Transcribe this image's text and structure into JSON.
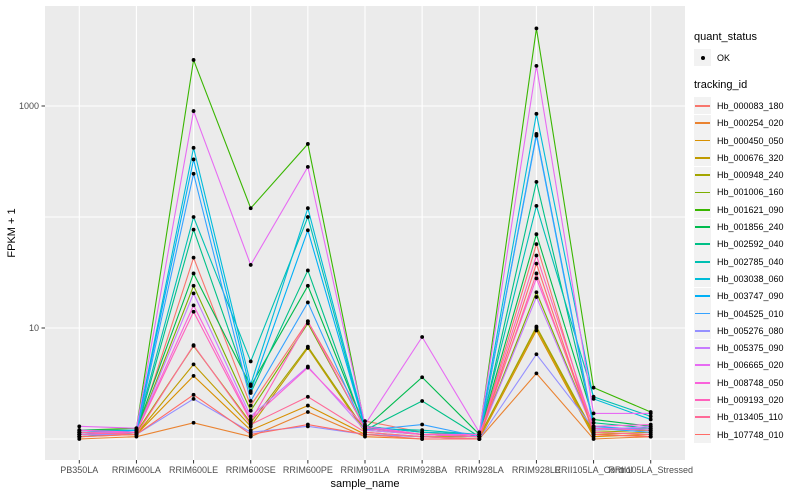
{
  "figure": {
    "background": "#FFFFFF",
    "panel": {
      "bg": "#EBEBEB",
      "grid_color": "#FFFFFF",
      "tick_color": "#333333",
      "tick_label_color": "#4D4D4D",
      "axis_title_color": "#000000"
    },
    "y_axis": {
      "title": "FPKM + 1",
      "tick_labels": [
        "1000",
        "10"
      ],
      "tick_values": [
        1000,
        10
      ],
      "gridline_values": [
        1,
        10,
        100,
        1000
      ],
      "scale": "log10"
    },
    "x_axis": {
      "title": "sample_name"
    },
    "legend": {
      "quant_status_title": "quant_status",
      "quant_status_item": "OK",
      "tracking_id_title": "tracking_id",
      "key_bg": "#F2F2F2",
      "point_color": "#000000"
    }
  },
  "chart_data": {
    "type": "line",
    "title": "",
    "xlabel": "sample_name",
    "ylabel": "FPKM + 1",
    "y_scale": "log10",
    "ylim": [
      0.65,
      8500
    ],
    "yticks": [
      10,
      1000
    ],
    "grid": true,
    "legend_position": "right",
    "point_marker": {
      "legend_label": "OK",
      "color": "#000000",
      "radius": 1.9
    },
    "x": [
      "PB350LA",
      "RRIM600LA",
      "RRIM600LE",
      "RRIM600SE",
      "RRIM600PE",
      "RRIM901LA",
      "RRIM928BA",
      "RRIM928LA",
      "RRIM928LE",
      "RRII105LA_Control",
      "RRII105LA_Stressed"
    ],
    "series": [
      {
        "name": "Hb_000083_180",
        "color": "#F8766D",
        "values": [
          1.15,
          1.1,
          43,
          2.0,
          11.5,
          1.45,
          1.15,
          1.05,
          57,
          1.1,
          1.05
        ]
      },
      {
        "name": "Hb_000254_020",
        "color": "#EA8331",
        "values": [
          1.0,
          1.05,
          1.4,
          1.05,
          1.75,
          1.05,
          1.0,
          1.0,
          3.9,
          1.0,
          1.05
        ]
      },
      {
        "name": "Hb_000450_050",
        "color": "#D89000",
        "values": [
          1.05,
          1.1,
          3.7,
          1.2,
          2.0,
          1.1,
          1.05,
          1.0,
          9.5,
          1.05,
          1.1
        ]
      },
      {
        "name": "Hb_000676_320",
        "color": "#C09B00",
        "values": [
          1.1,
          1.1,
          4.7,
          1.3,
          6.6,
          1.15,
          1.05,
          1.05,
          10.0,
          1.1,
          1.15
        ]
      },
      {
        "name": "Hb_000948_240",
        "color": "#A3A500",
        "values": [
          1.05,
          1.15,
          6.9,
          1.4,
          6.8,
          1.2,
          1.1,
          1.05,
          10.3,
          1.15,
          1.2
        ]
      },
      {
        "name": "Hb_001006_160",
        "color": "#7CAE00",
        "values": [
          1.1,
          1.15,
          24,
          1.8,
          11,
          1.25,
          1.1,
          1.05,
          21,
          1.2,
          1.25
        ]
      },
      {
        "name": "Hb_001621_090",
        "color": "#39B600",
        "values": [
          1.2,
          1.25,
          2600,
          120,
          455,
          1.3,
          1.15,
          1.1,
          5000,
          2.9,
          1.75
        ]
      },
      {
        "name": "Hb_001856_240",
        "color": "#00BB4E",
        "values": [
          1.15,
          1.2,
          31,
          3.0,
          24,
          1.25,
          3.6,
          1.1,
          70,
          1.5,
          1.3
        ]
      },
      {
        "name": "Hb_002592_040",
        "color": "#00C087",
        "values": [
          1.1,
          1.15,
          77,
          2.6,
          33,
          1.2,
          2.2,
          1.05,
          207,
          1.4,
          1.25
        ]
      },
      {
        "name": "Hb_002785_040",
        "color": "#00C0B2",
        "values": [
          1.2,
          1.2,
          100,
          5.0,
          100,
          1.25,
          1.2,
          1.1,
          126,
          2.4,
          1.6
        ]
      },
      {
        "name": "Hb_003038_060",
        "color": "#00BCD8",
        "values": [
          1.15,
          1.2,
          420,
          3.1,
          120,
          1.3,
          1.15,
          1.1,
          850,
          2.3,
          1.5
        ]
      },
      {
        "name": "Hb_003747_090",
        "color": "#00B0F6",
        "values": [
          1.1,
          1.2,
          330,
          2.7,
          76,
          1.25,
          1.1,
          1.05,
          560,
          1.3,
          1.2
        ]
      },
      {
        "name": "Hb_004525_010",
        "color": "#35A2FF",
        "values": [
          1.05,
          1.15,
          245,
          2.2,
          17,
          1.2,
          1.35,
          1.05,
          540,
          1.25,
          1.15
        ]
      },
      {
        "name": "Hb_005276_080",
        "color": "#9590FF",
        "values": [
          1.1,
          1.1,
          2.3,
          1.15,
          1.3,
          1.1,
          1.05,
          1.0,
          5.8,
          1.25,
          1.25
        ]
      },
      {
        "name": "Hb_005375_090",
        "color": "#C77CFF",
        "values": [
          1.15,
          1.15,
          20.5,
          1.6,
          4.5,
          1.2,
          1.1,
          1.05,
          19,
          1.2,
          1.3
        ]
      },
      {
        "name": "Hb_006665_020",
        "color": "#E76BF3",
        "values": [
          1.3,
          1.25,
          900,
          37,
          283,
          1.35,
          8.3,
          1.15,
          2300,
          1.7,
          1.7
        ]
      },
      {
        "name": "Hb_008748_050",
        "color": "#FA62DB",
        "values": [
          1.2,
          1.15,
          16,
          1.5,
          4.4,
          1.3,
          1.1,
          1.1,
          28,
          1.3,
          1.35
        ]
      },
      {
        "name": "Hb_009193_020",
        "color": "#FF62BC",
        "values": [
          1.1,
          1.15,
          14,
          1.45,
          11.5,
          1.25,
          1.1,
          1.05,
          45,
          1.25,
          1.2
        ]
      },
      {
        "name": "Hb_013405_110",
        "color": "#FF6A98",
        "values": [
          1.15,
          1.1,
          7.0,
          1.35,
          2.4,
          1.15,
          1.05,
          1.0,
          31,
          1.15,
          1.1
        ]
      },
      {
        "name": "Hb_107748_010",
        "color": "#FF6C67",
        "values": [
          1.05,
          1.1,
          2.5,
          1.1,
          1.35,
          1.1,
          1.0,
          1.0,
          38,
          1.1,
          1.05
        ]
      }
    ]
  }
}
